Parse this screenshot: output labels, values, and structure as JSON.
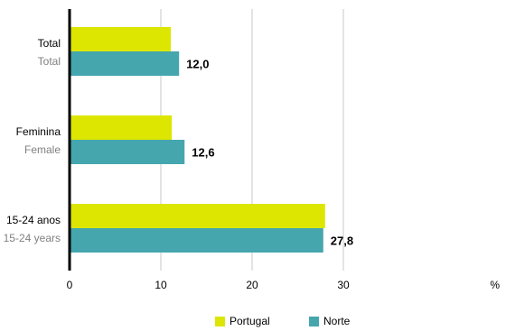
{
  "chart_data": {
    "type": "bar",
    "orientation": "horizontal",
    "categories": [
      {
        "label": "Total",
        "sublabel": "Total"
      },
      {
        "label": "Feminina",
        "sublabel": "Female"
      },
      {
        "label": "15-24 anos",
        "sublabel": "15-24 years"
      }
    ],
    "series": [
      {
        "name": "Portugal",
        "color": "#dce600",
        "values": [
          11.1,
          11.2,
          28.0
        ]
      },
      {
        "name": "Norte",
        "color": "#45a6ae",
        "values": [
          12.0,
          12.6,
          27.8
        ]
      }
    ],
    "data_labels": [
      "12,0",
      "12,6",
      "27,8"
    ],
    "x_ticks": [
      "0",
      "10",
      "20",
      "30"
    ],
    "x_unit": "%",
    "xlim": [
      0,
      30
    ],
    "grid": true,
    "legend": "bottom"
  }
}
